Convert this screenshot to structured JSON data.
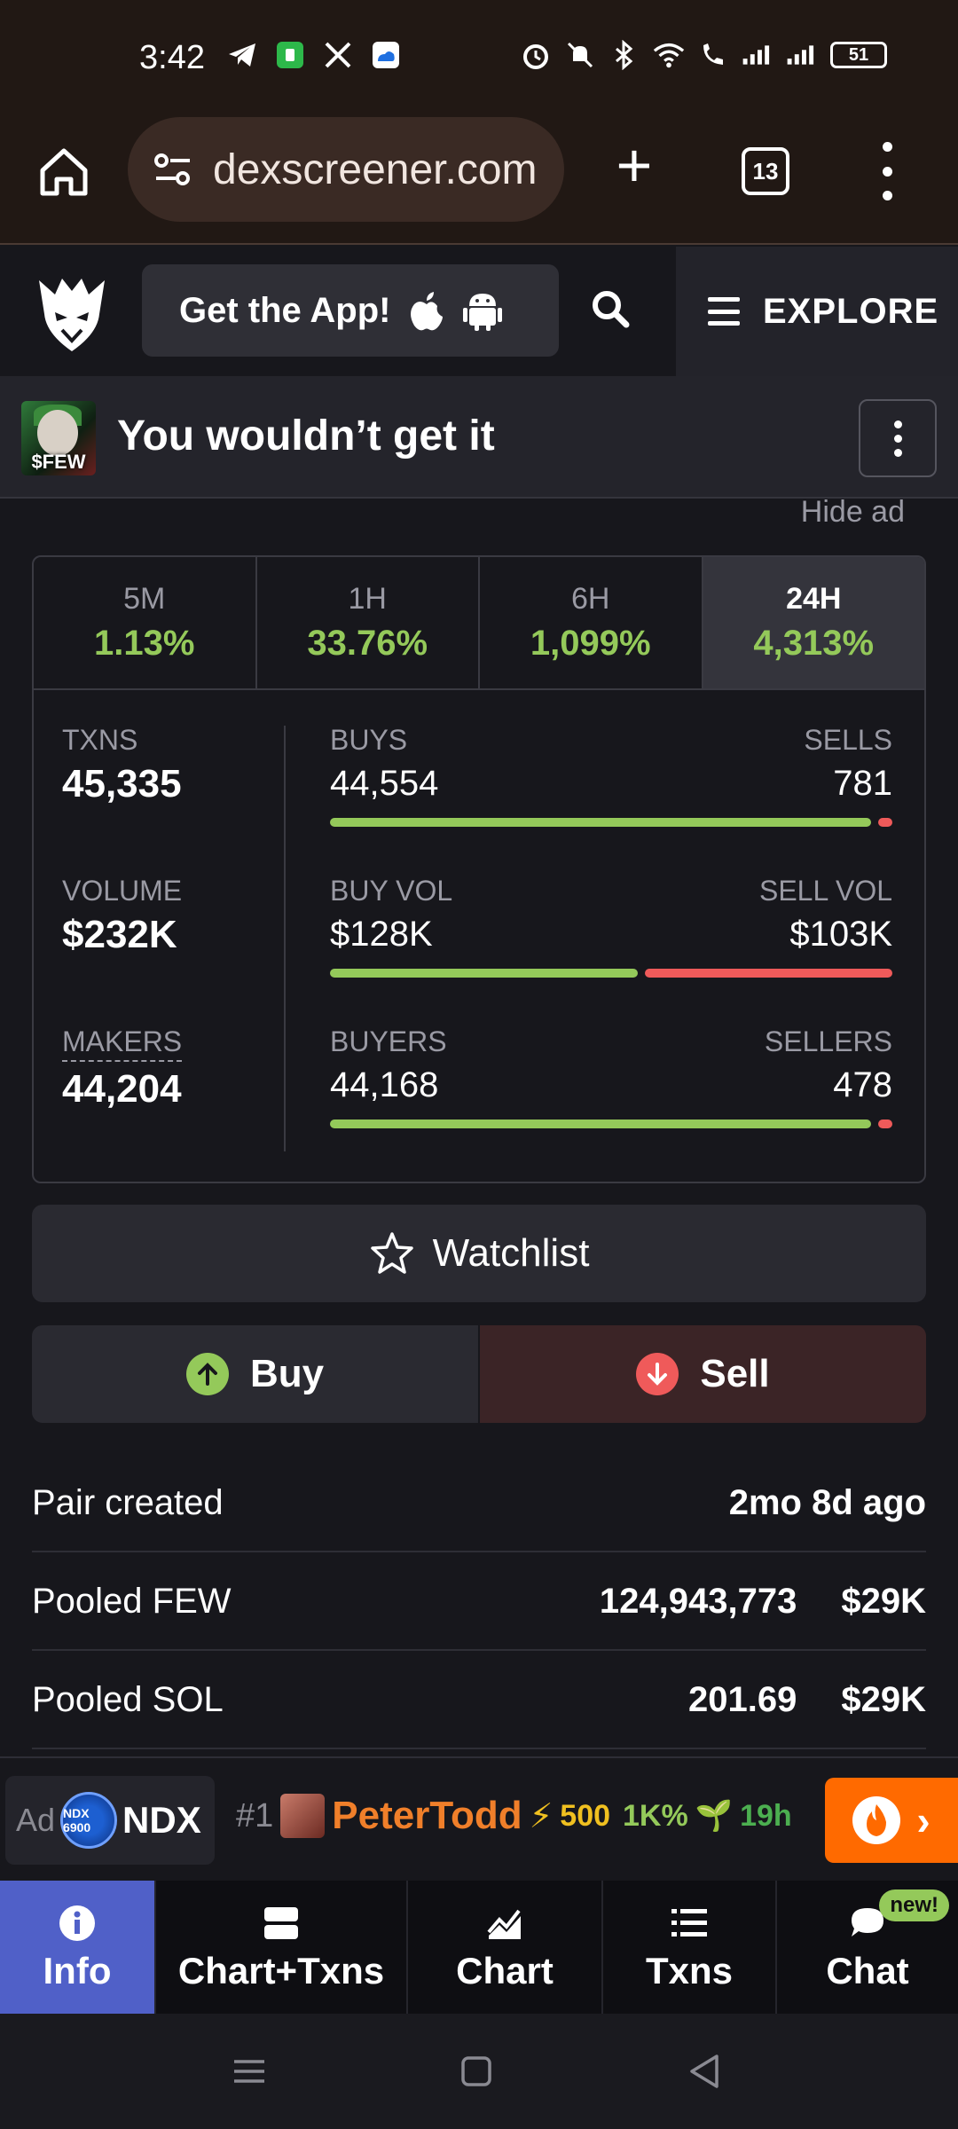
{
  "status_bar": {
    "time": "3:42",
    "battery": "51"
  },
  "browser": {
    "url": "dexscreener.com",
    "tab_count": "13"
  },
  "header": {
    "get_app_label": "Get the App!",
    "explore_label": "EXPLORE"
  },
  "token": {
    "avatar_tag": "$FEW",
    "title": "You wouldn’t get it"
  },
  "hide_ad_label": "Hide ad",
  "timeframes": [
    {
      "label": "5M",
      "value": "1.13%"
    },
    {
      "label": "1H",
      "value": "33.76%"
    },
    {
      "label": "6H",
      "value": "1,099%"
    },
    {
      "label": "24H",
      "value": "4,313%"
    }
  ],
  "stats": {
    "txns_label": "TXNS",
    "txns_value": "45,335",
    "volume_label": "VOLUME",
    "volume_value": "$232K",
    "makers_label": "MAKERS",
    "makers_value": "44,204"
  },
  "bars": [
    {
      "left_label": "BUYS",
      "right_label": "SELLS",
      "left_value": "44,554",
      "right_value": "781",
      "ratio": 0.983
    },
    {
      "left_label": "BUY VOL",
      "right_label": "SELL VOL",
      "left_value": "$128K",
      "right_value": "$103K",
      "ratio": 0.554
    },
    {
      "left_label": "BUYERS",
      "right_label": "SELLERS",
      "left_value": "44,168",
      "right_value": "478",
      "ratio": 0.989
    }
  ],
  "actions": {
    "watchlist_label": "Watchlist",
    "buy_label": "Buy",
    "sell_label": "Sell"
  },
  "info_rows": [
    {
      "label": "Pair created",
      "value": "2mo 8d ago",
      "value2": ""
    },
    {
      "label": "Pooled FEW",
      "value": "124,943,773",
      "value2": "$29K"
    },
    {
      "label": "Pooled SOL",
      "value": "201.69",
      "value2": "$29K"
    }
  ],
  "ad": {
    "tag": "Ad",
    "logo_text": "NDX 6900",
    "name": "NDX",
    "rank": "#1",
    "user": "PeterTodd",
    "boost": "500",
    "pct": "1K%",
    "age": "19h"
  },
  "bottom_nav": [
    {
      "label": "Info",
      "icon": "info-icon",
      "active": true
    },
    {
      "label": "Chart+Txns",
      "icon": "split-view-icon",
      "active": false
    },
    {
      "label": "Chart",
      "icon": "chart-icon",
      "active": false
    },
    {
      "label": "Txns",
      "icon": "list-icon",
      "active": false
    },
    {
      "label": "Chat",
      "icon": "chat-icon",
      "active": false,
      "badge": "new!"
    }
  ],
  "colors": {
    "green": "#94c95a",
    "red": "#ef5a5a",
    "accent": "#5060c8",
    "orange": "#ff6a00"
  }
}
